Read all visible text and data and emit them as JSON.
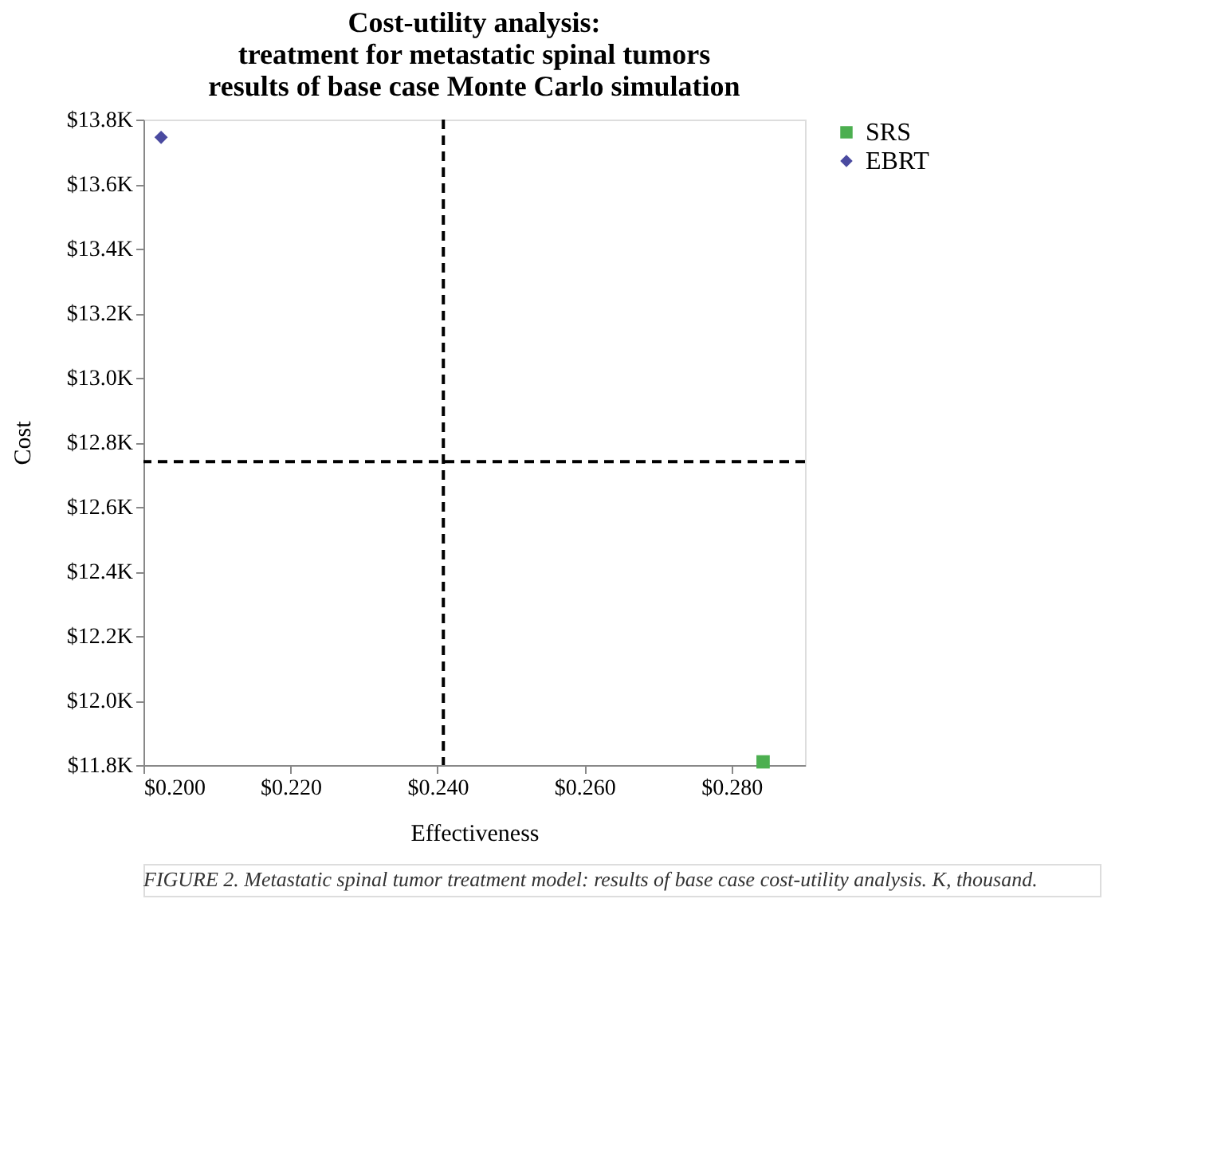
{
  "chart_data": {
    "type": "scatter",
    "title": [
      "Cost-utility analysis:",
      "treatment for metastatic spinal tumors",
      "results of base case Monte Carlo simulation"
    ],
    "xlabel": "Effectiveness",
    "ylabel": "Cost",
    "series": [
      {
        "name": "SRS",
        "color": "#4caf50",
        "marker": "square",
        "x": [
          0.2843
        ],
        "values": [
          11.81
        ]
      },
      {
        "name": "EBRT",
        "color": "#4a4aa0",
        "marker": "diamond",
        "x": [
          0.2024
        ],
        "values": [
          13.745
        ]
      }
    ],
    "xlim": [
      0.2,
      0.29
    ],
    "xticks": [
      {
        "value": 0.2,
        "label": "$0.200"
      },
      {
        "value": 0.22,
        "label": "$0.220"
      },
      {
        "value": 0.24,
        "label": "$0.240"
      },
      {
        "value": 0.26,
        "label": "$0.260"
      },
      {
        "value": 0.28,
        "label": "$0.280"
      }
    ],
    "ylim": [
      11.8,
      13.8
    ],
    "yticks": [
      {
        "value": 11.8,
        "label": "$11.8K"
      },
      {
        "value": 12.0,
        "label": "$12.0K"
      },
      {
        "value": 12.2,
        "label": "$12.2K"
      },
      {
        "value": 12.4,
        "label": "$12.4K"
      },
      {
        "value": 12.6,
        "label": "$12.6K"
      },
      {
        "value": 12.8,
        "label": "$12.8K"
      },
      {
        "value": 13.0,
        "label": "$13.0K"
      },
      {
        "value": 13.2,
        "label": "$13.2K"
      },
      {
        "value": 13.4,
        "label": "$13.4K"
      },
      {
        "value": 13.6,
        "label": "$13.6K"
      },
      {
        "value": 13.8,
        "label": "$13.8K"
      }
    ],
    "ref_lines": [
      {
        "axis": "x",
        "value": 0.2408,
        "color": "#000000",
        "line_style": "dashed"
      },
      {
        "axis": "y",
        "value": 12.74,
        "color": "#000000",
        "line_style": "dashed"
      }
    ],
    "grid": false,
    "legend": "top right",
    "annotations": [
      "FIGURE 2. Metastatic spinal tumor treatment model: results of base case cost-utility analysis. K, thousand."
    ]
  }
}
